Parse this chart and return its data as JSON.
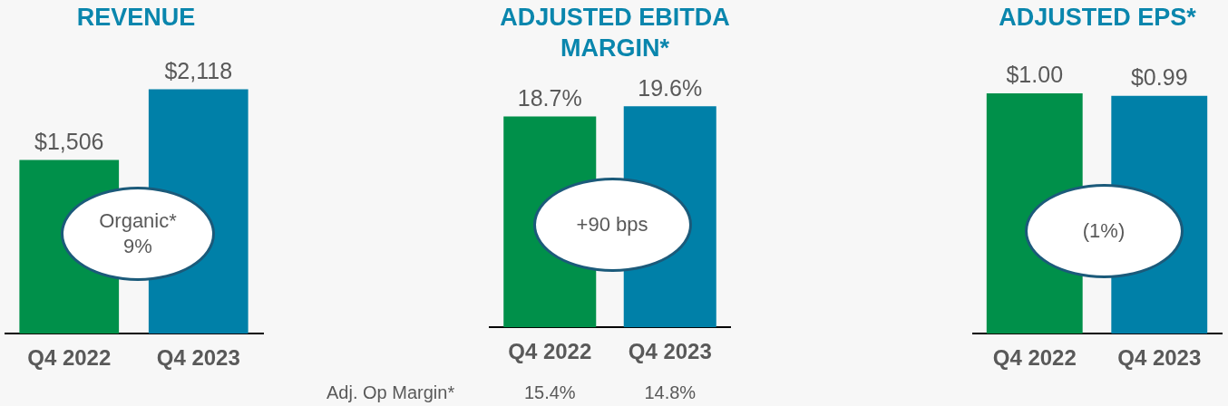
{
  "chart_data": [
    {
      "type": "bar",
      "title": "REVENUE",
      "categories": [
        "Q4 2022",
        "Q4 2023"
      ],
      "values": [
        1506,
        2118
      ],
      "colors": [
        "#00904a",
        "#0080a8"
      ],
      "value_labels": [
        "$1,506",
        "$2,118"
      ],
      "annotations": [
        "Organic* 9%"
      ],
      "grid": false,
      "legend": false
    },
    {
      "type": "bar",
      "title": "ADJUSTED EBITDA MARGIN*",
      "categories": [
        "Q4 2022",
        "Q4 2023"
      ],
      "values": [
        18.7,
        19.6
      ],
      "colors": [
        "#00904a",
        "#0080a8"
      ],
      "value_labels": [
        "18.7%",
        "19.6%"
      ],
      "annotations": [
        "+90 bps",
        "Adj. Op Margin*",
        "15.4%",
        "14.8%"
      ],
      "grid": false,
      "legend": false
    },
    {
      "type": "bar",
      "title": "ADJUSTED EPS*",
      "categories": [
        "Q4 2022",
        "Q4 2023"
      ],
      "values": [
        1.0,
        0.99
      ],
      "colors": [
        "#00904a",
        "#0080a8"
      ],
      "value_labels": [
        "$1.00",
        "$0.99"
      ],
      "annotations": [
        "(1%)"
      ],
      "grid": false,
      "legend": false
    }
  ]
}
